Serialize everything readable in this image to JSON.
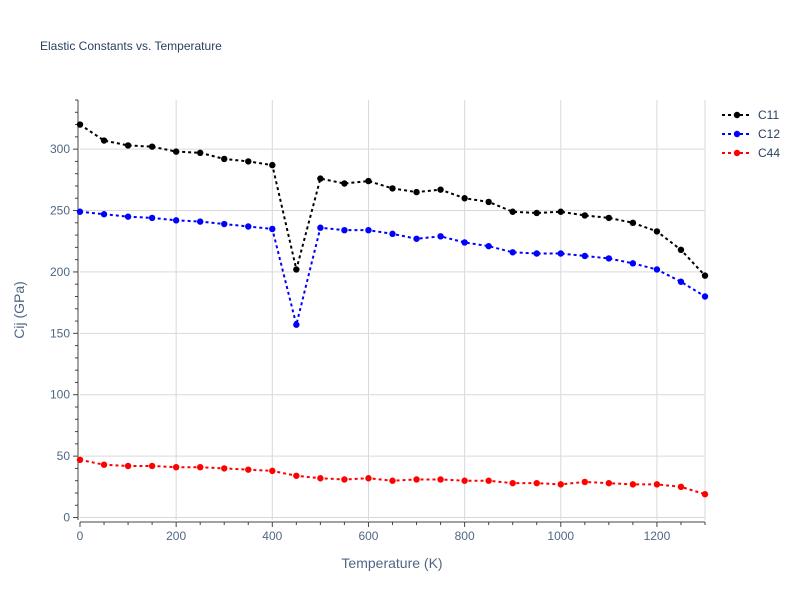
{
  "chart_data": {
    "type": "line",
    "title": "Elastic Constants vs. Temperature",
    "xlabel": "Temperature (K)",
    "ylabel": "Cij (GPa)",
    "xlim": [
      0,
      1300
    ],
    "ylim": [
      -2,
      340
    ],
    "xticks": [
      0,
      200,
      400,
      600,
      800,
      1000,
      1200
    ],
    "yticks": [
      0,
      50,
      100,
      150,
      200,
      250,
      300
    ],
    "grid": true,
    "legend_position": "top-right",
    "x": [
      0,
      50,
      100,
      150,
      200,
      250,
      300,
      350,
      400,
      450,
      500,
      550,
      600,
      650,
      700,
      750,
      800,
      850,
      900,
      950,
      1000,
      1050,
      1100,
      1150,
      1200,
      1250,
      1300
    ],
    "series": [
      {
        "name": "C11",
        "color": "#000000",
        "values": [
          320,
          307,
          303,
          302,
          298,
          297,
          292,
          290,
          287,
          202,
          276,
          272,
          274,
          268,
          265,
          267,
          260,
          257,
          249,
          248,
          249,
          246,
          244,
          240,
          233,
          218,
          197
        ]
      },
      {
        "name": "C12",
        "color": "#0000ff",
        "values": [
          249,
          247,
          245,
          244,
          242,
          241,
          239,
          237,
          235,
          157,
          236,
          234,
          234,
          231,
          227,
          229,
          224,
          221,
          216,
          215,
          215,
          213,
          211,
          207,
          202,
          192,
          180
        ]
      },
      {
        "name": "C44",
        "color": "#ff0000",
        "values": [
          47,
          43,
          42,
          42,
          41,
          41,
          40,
          39,
          38,
          34,
          32,
          31,
          32,
          30,
          31,
          31,
          30,
          30,
          28,
          28,
          27,
          29,
          28,
          27,
          27,
          25,
          19
        ]
      }
    ]
  }
}
